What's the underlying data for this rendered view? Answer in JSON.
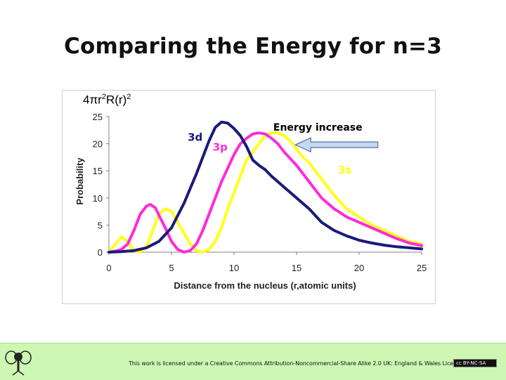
{
  "slide": {
    "title": "Comparing the Energy for n=3"
  },
  "footer": {
    "license_text": "This work is licensed under a Creative Commons Attribution-Noncommercial-Share Alike 2.0 UK: England & Wales License",
    "cc_badge": "cc  BY-NC-SA"
  },
  "chart_data": {
    "type": "line",
    "title": "",
    "formula_label": {
      "base": "4πr",
      "exp": "2",
      "mid": "R(r)",
      "exp2": "2"
    },
    "xlabel": "Distance from the nucleus (r,atomic units)",
    "ylabel": "Probability",
    "xlim": [
      0,
      25
    ],
    "ylim": [
      0,
      25
    ],
    "xticks": [
      0,
      5,
      10,
      15,
      20,
      25
    ],
    "yticks": [
      0,
      5,
      10,
      15,
      20,
      25
    ],
    "grid": false,
    "series": [
      {
        "name": "3d",
        "color": "#1a1a7a",
        "points": [
          [
            0,
            0
          ],
          [
            1,
            0.1
          ],
          [
            2,
            0.3
          ],
          [
            3,
            0.8
          ],
          [
            4,
            2
          ],
          [
            5,
            4.5
          ],
          [
            6,
            9
          ],
          [
            7,
            14.5
          ],
          [
            7.5,
            17.5
          ],
          [
            8,
            20.5
          ],
          [
            8.5,
            23
          ],
          [
            9,
            24
          ],
          [
            9.5,
            23.8
          ],
          [
            10,
            22.8
          ],
          [
            10.5,
            21.5
          ],
          [
            11,
            19.5
          ],
          [
            11.5,
            17
          ],
          [
            12,
            16
          ],
          [
            12.5,
            15.2
          ],
          [
            13,
            14
          ],
          [
            14,
            12
          ],
          [
            15,
            10
          ],
          [
            16,
            8
          ],
          [
            17,
            5.5
          ],
          [
            18,
            4
          ],
          [
            19,
            3
          ],
          [
            20,
            2.2
          ],
          [
            21,
            1.7
          ],
          [
            22,
            1.3
          ],
          [
            23,
            1
          ],
          [
            24,
            0.8
          ],
          [
            25,
            0.6
          ]
        ]
      },
      {
        "name": "3p",
        "color": "#ff2bd6",
        "points": [
          [
            0,
            0
          ],
          [
            0.5,
            0.2
          ],
          [
            1,
            0.5
          ],
          [
            1.5,
            1.5
          ],
          [
            2,
            4
          ],
          [
            2.5,
            7
          ],
          [
            3,
            8.5
          ],
          [
            3.3,
            8.8
          ],
          [
            3.7,
            8.2
          ],
          [
            4,
            6.8
          ],
          [
            4.5,
            4.5
          ],
          [
            5,
            2
          ],
          [
            5.5,
            0.5
          ],
          [
            6,
            0
          ],
          [
            6.5,
            0.3
          ],
          [
            7,
            1.5
          ],
          [
            7.5,
            4
          ],
          [
            8,
            7
          ],
          [
            8.5,
            10
          ],
          [
            9,
            13
          ],
          [
            9.5,
            15.5
          ],
          [
            10,
            18
          ],
          [
            10.5,
            20
          ],
          [
            11,
            21
          ],
          [
            11.5,
            21.8
          ],
          [
            12,
            22
          ],
          [
            12.5,
            21.8
          ],
          [
            13,
            21
          ],
          [
            13.5,
            20
          ],
          [
            14,
            18.5
          ],
          [
            15,
            16
          ],
          [
            16,
            13
          ],
          [
            17,
            10
          ],
          [
            18,
            8
          ],
          [
            19,
            6.5
          ],
          [
            20,
            5.5
          ],
          [
            21,
            4.5
          ],
          [
            22,
            3.5
          ],
          [
            23,
            2.5
          ],
          [
            24,
            1.7
          ],
          [
            25,
            1.2
          ]
        ]
      },
      {
        "name": "3s",
        "color": "#ffff1a",
        "points": [
          [
            0,
            0
          ],
          [
            0.5,
            1.5
          ],
          [
            1,
            2.8
          ],
          [
            1.5,
            2
          ],
          [
            2,
            0.3
          ],
          [
            2.5,
            0
          ],
          [
            3,
            1
          ],
          [
            3.5,
            4
          ],
          [
            4,
            7
          ],
          [
            4.5,
            8
          ],
          [
            5,
            7.5
          ],
          [
            5.5,
            5.5
          ],
          [
            6,
            3.5
          ],
          [
            6.5,
            1.5
          ],
          [
            7,
            0.3
          ],
          [
            7.5,
            0
          ],
          [
            8,
            0.5
          ],
          [
            8.5,
            2
          ],
          [
            9,
            4.5
          ],
          [
            9.5,
            8
          ],
          [
            10,
            11
          ],
          [
            10.5,
            14
          ],
          [
            11,
            17
          ],
          [
            11.5,
            18.5
          ],
          [
            12,
            20
          ],
          [
            12.5,
            21.5
          ],
          [
            13,
            22
          ],
          [
            13.5,
            22
          ],
          [
            14,
            21.5
          ],
          [
            14.5,
            20.5
          ],
          [
            15,
            19
          ],
          [
            15.5,
            17.5
          ],
          [
            16,
            16.5
          ],
          [
            16.5,
            15
          ],
          [
            17,
            13.5
          ],
          [
            18,
            10.5
          ],
          [
            19,
            8
          ],
          [
            20,
            6.5
          ],
          [
            21,
            5
          ],
          [
            22,
            4
          ],
          [
            23,
            3
          ],
          [
            24,
            2
          ],
          [
            25,
            1.5
          ]
        ]
      }
    ],
    "annotations": [
      {
        "text": "3d",
        "x": 6.3,
        "y": 20.5,
        "color": "#1a1a7a"
      },
      {
        "text": "3p",
        "x": 8.3,
        "y": 18.7,
        "color": "#ff2bd6"
      },
      {
        "text": "3s",
        "x": 18.3,
        "y": 14.5,
        "color": "#ffff1a"
      },
      {
        "text": "Energy increase",
        "x": 16.7,
        "y": 22.4,
        "color": "#000000"
      }
    ],
    "arrow": {
      "from": [
        21.5,
        19.8
      ],
      "to": [
        14.9,
        19.8
      ],
      "fill": "#c5d9f1",
      "stroke": "#4f6fa3"
    }
  }
}
